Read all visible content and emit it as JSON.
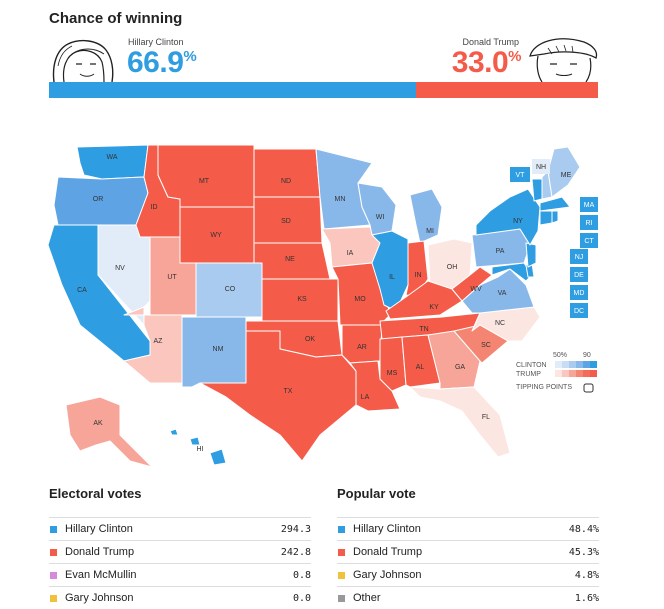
{
  "header": {
    "title": "Chance of winning"
  },
  "clinton": {
    "name": "Hillary Clinton",
    "pct": "66.9",
    "color": "#2f9de2",
    "bar_fraction": 0.669
  },
  "trump": {
    "name": "Donald Trump",
    "pct": "33.0",
    "color": "#f45c49",
    "bar_fraction": 0.33
  },
  "pct_symbol": "%",
  "map": {
    "states": {
      "WA": "WA",
      "OR": "OR",
      "CA": "CA",
      "NV": "NV",
      "ID": "ID",
      "MT": "MT",
      "WY": "WY",
      "UT": "UT",
      "AZ": "AZ",
      "CO": "CO",
      "NM": "NM",
      "ND": "ND",
      "SD": "SD",
      "NE": "NE",
      "KS": "KS",
      "OK": "OK",
      "TX": "TX",
      "MN": "MN",
      "IA": "IA",
      "MO": "MO",
      "AR": "AR",
      "LA": "LA",
      "WI": "WI",
      "IL": "IL",
      "MI": "MI",
      "IN": "IN",
      "OH": "OH",
      "KY": "KY",
      "TN": "TN",
      "MS": "MS",
      "AL": "AL",
      "GA": "GA",
      "FL": "FL",
      "SC": "SC",
      "NC": "NC",
      "VA": "VA",
      "WV": "WV",
      "PA": "PA",
      "NY": "NY",
      "ME": "ME",
      "NH": "NH",
      "VT": "VT",
      "AK": "AK",
      "HI": "HI",
      "MA": "MA",
      "RI": "RI",
      "CT": "CT",
      "NJ": "NJ",
      "DE": "DE",
      "MD": "MD",
      "DC": "DC"
    },
    "legend": {
      "scale_min": "50%",
      "scale_max": "90",
      "clinton_label": "CLINTON",
      "trump_label": "TRUMP",
      "tipping_label": "TIPPING POINTS",
      "clinton_shades": [
        "#e1ecf8",
        "#c8ddf4",
        "#a9cbef",
        "#88b8ea",
        "#5ea4e5",
        "#2f9de2"
      ],
      "trump_shades": [
        "#fce6e2",
        "#fac6bd",
        "#f7a598",
        "#f58573",
        "#f46b59",
        "#f45c49"
      ]
    }
  },
  "electoral": {
    "title": "Electoral votes",
    "rows": [
      {
        "label": "Hillary Clinton",
        "value": "294.3",
        "color": "#2f9de2"
      },
      {
        "label": "Donald Trump",
        "value": "242.8",
        "color": "#f45c49"
      },
      {
        "label": "Evan McMullin",
        "value": "0.8",
        "color": "#d68ad9"
      },
      {
        "label": "Gary Johnson",
        "value": "0.0",
        "color": "#f0c239"
      }
    ]
  },
  "popular": {
    "title": "Popular vote",
    "rows": [
      {
        "label": "Hillary Clinton",
        "value": "48.4%",
        "color": "#2f9de2"
      },
      {
        "label": "Donald Trump",
        "value": "45.3%",
        "color": "#f45c49"
      },
      {
        "label": "Gary Johnson",
        "value": "4.8%",
        "color": "#f0c239"
      },
      {
        "label": "Other",
        "value": "1.6%",
        "color": "#999999"
      }
    ]
  }
}
